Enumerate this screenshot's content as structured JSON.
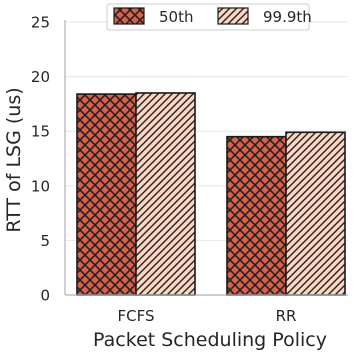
{
  "chart_data": {
    "type": "bar",
    "categories": [
      "FCFS",
      "RR"
    ],
    "series": [
      {
        "name": "50th",
        "values": [
          18.4,
          14.5
        ]
      },
      {
        "name": "99.9th",
        "values": [
          18.5,
          14.9
        ]
      }
    ],
    "title": "",
    "xlabel": "Packet Scheduling Policy",
    "ylabel": "RTT of LSG (us)",
    "ylim": [
      0,
      25
    ],
    "yticks": [
      0,
      5,
      10,
      15,
      20,
      25
    ],
    "grid": "horizontal",
    "legend_position": "top-center",
    "colors": {
      "bar_50th": "#d9604b",
      "bar_999th": "#fcd5c3",
      "hatch_50th": "#222222",
      "hatch_999th": "#222222",
      "grid": "#e6e6e6",
      "axis": "#b0b0b0",
      "bar_edge": "#1a1a1a"
    }
  }
}
